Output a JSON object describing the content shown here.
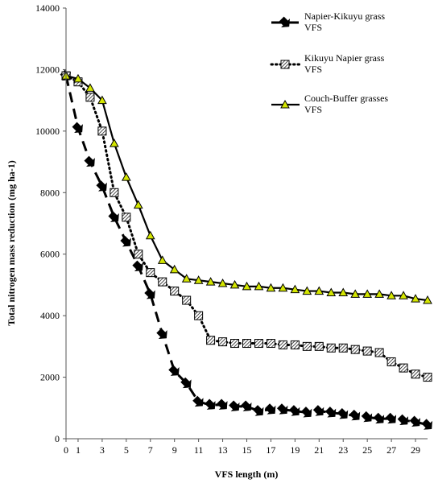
{
  "chart_data": {
    "type": "line",
    "xlabel": "VFS length (m)",
    "ylabel": "Total nitrogen mass reduction  (mg ha-1)",
    "xlim": [
      0,
      30
    ],
    "ylim": [
      0,
      14000
    ],
    "x_ticks": [
      0,
      1,
      3,
      5,
      7,
      9,
      11,
      13,
      15,
      17,
      19,
      21,
      23,
      25,
      27,
      29
    ],
    "y_ticks": [
      0,
      2000,
      4000,
      6000,
      8000,
      10000,
      12000,
      14000
    ],
    "x_tick_labels": [
      "0",
      "1",
      "3",
      "5",
      "7",
      "9",
      "11",
      "13",
      "15",
      "17",
      "19",
      "21",
      "23",
      "25",
      "27",
      "29"
    ],
    "y_tick_labels": [
      "0",
      "2000",
      "4000",
      "6000",
      "8000",
      "10000",
      "12000",
      "14000"
    ],
    "grid": false,
    "legend_placement": "top-right",
    "x": [
      0,
      1,
      2,
      3,
      4,
      5,
      6,
      7,
      8,
      9,
      10,
      11,
      12,
      13,
      14,
      15,
      16,
      17,
      18,
      19,
      20,
      21,
      22,
      23,
      24,
      25,
      26,
      27,
      28,
      29,
      30
    ],
    "series": [
      {
        "name": "Napier-Kikuyu grass VFS",
        "line_style": "dashed",
        "marker": "arrow",
        "color": "#000000",
        "values": [
          11800,
          10100,
          9000,
          8200,
          7200,
          6400,
          5600,
          4700,
          3400,
          2200,
          1800,
          1200,
          1100,
          1100,
          1050,
          1050,
          900,
          950,
          950,
          900,
          850,
          900,
          850,
          800,
          750,
          700,
          650,
          650,
          600,
          550,
          450
        ]
      },
      {
        "name": "Kikuyu Napier grass VFS",
        "line_style": "dotted",
        "marker": "hatched-square",
        "color": "#000000",
        "values": [
          11800,
          11600,
          11100,
          10000,
          8000,
          7200,
          6000,
          5400,
          5100,
          4800,
          4500,
          4000,
          3200,
          3150,
          3100,
          3100,
          3100,
          3100,
          3050,
          3050,
          3000,
          3000,
          2950,
          2950,
          2900,
          2850,
          2800,
          2500,
          2300,
          2100,
          2000
        ]
      },
      {
        "name": "Couch-Buffer grasses VFS",
        "line_style": "solid",
        "marker": "triangle",
        "color": "#000000",
        "marker_fill": "#d4e600",
        "values": [
          11800,
          11700,
          11400,
          11000,
          9600,
          8500,
          7600,
          6600,
          5800,
          5500,
          5200,
          5150,
          5100,
          5050,
          5000,
          4950,
          4950,
          4900,
          4900,
          4850,
          4800,
          4800,
          4750,
          4750,
          4700,
          4700,
          4700,
          4650,
          4650,
          4550,
          4500
        ]
      }
    ]
  }
}
